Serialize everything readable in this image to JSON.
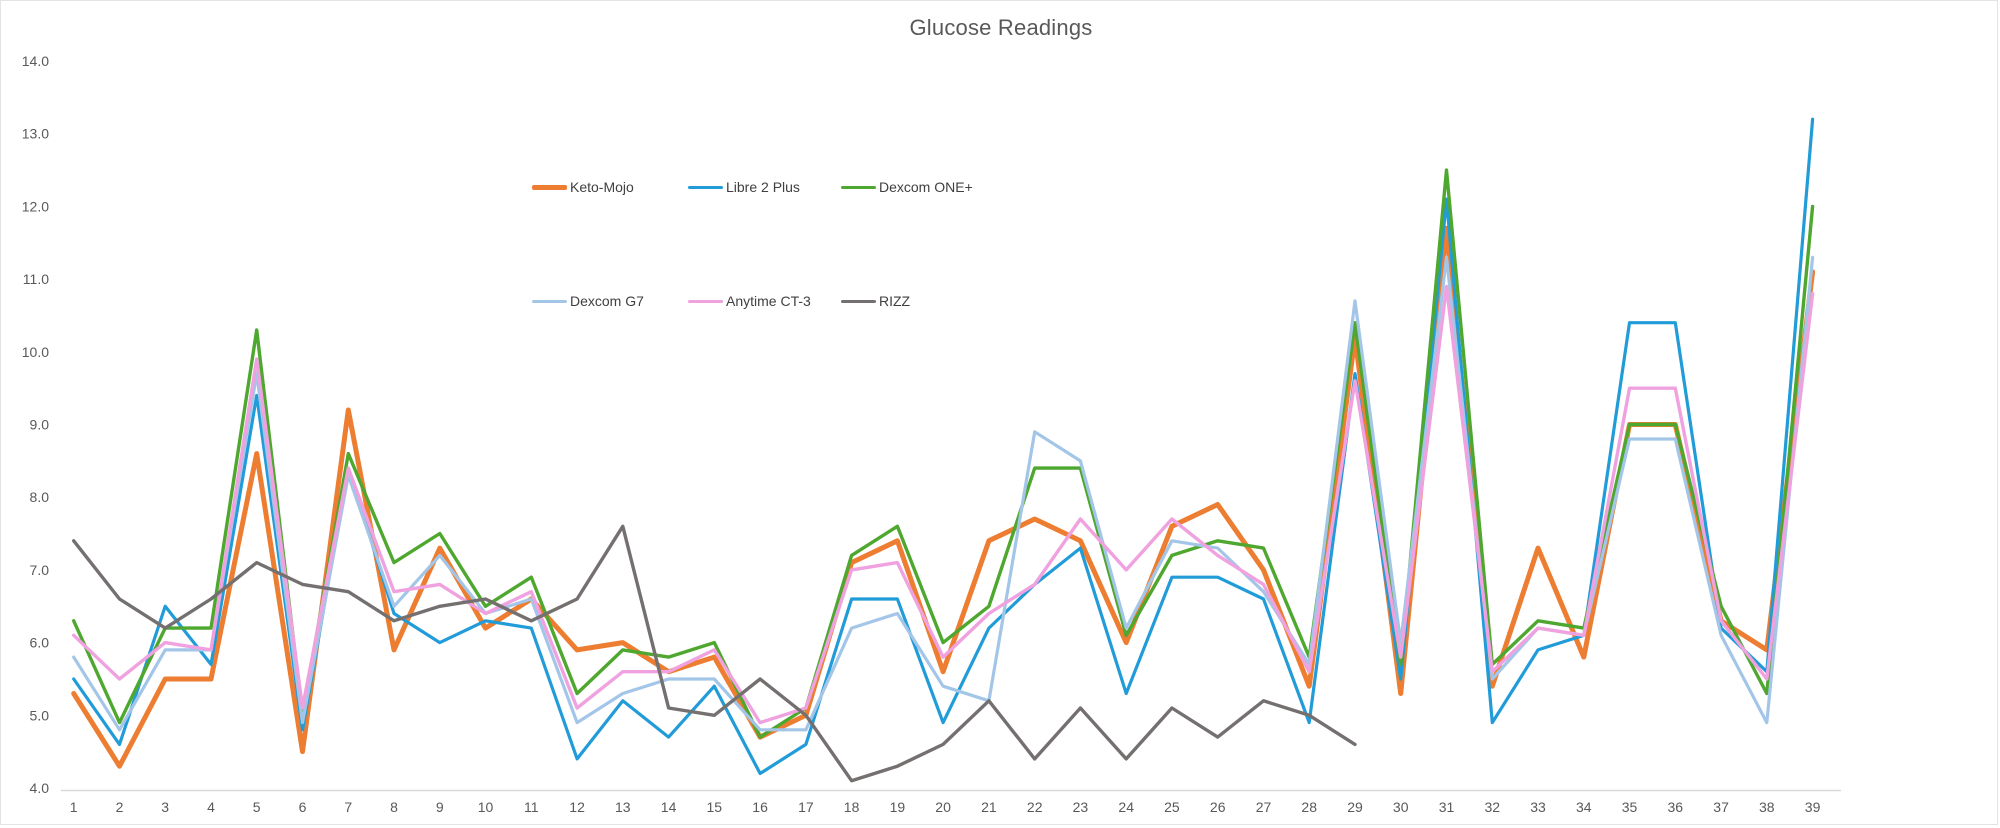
{
  "chart_data": {
    "type": "line",
    "title": "Glucose Readings",
    "xlabel": "",
    "ylabel": "",
    "ylim": [
      4.0,
      14.0
    ],
    "y_tick_step": 1.0,
    "y_ticks": [
      "14.0",
      "13.0",
      "12.0",
      "11.0",
      "10.0",
      "9.0",
      "8.0",
      "7.0",
      "6.0",
      "5.0",
      "4.0"
    ],
    "x": [
      1,
      2,
      3,
      4,
      5,
      6,
      7,
      8,
      9,
      10,
      11,
      12,
      13,
      14,
      15,
      16,
      17,
      18,
      19,
      20,
      21,
      22,
      23,
      24,
      25,
      26,
      27,
      28,
      29,
      30,
      31,
      32,
      33,
      34,
      35,
      36,
      37,
      38,
      39
    ],
    "grid": false,
    "legend_position": "top-center-two-rows",
    "axis_line_color": "#d9d9d9",
    "text_color": "#595959",
    "legend_text_color": "#404040",
    "series": [
      {
        "name": "Keto-Mojo",
        "color": "#ED7D31",
        "width": 5,
        "values": [
          5.3,
          4.3,
          5.5,
          5.5,
          8.6,
          4.5,
          9.2,
          5.9,
          7.3,
          6.2,
          6.6,
          5.9,
          6.0,
          5.6,
          5.8,
          4.7,
          5.0,
          7.1,
          7.4,
          5.6,
          7.4,
          7.7,
          7.4,
          6.0,
          7.6,
          7.9,
          7.0,
          5.4,
          10.2,
          5.3,
          11.7,
          5.4,
          7.3,
          5.8,
          9.0,
          9.0,
          6.3,
          5.9,
          11.1
        ]
      },
      {
        "name": "Libre 2 Plus",
        "color": "#219CD8",
        "width": 3.2,
        "values": [
          5.5,
          4.6,
          6.5,
          5.7,
          9.4,
          4.8,
          8.4,
          6.4,
          6.0,
          6.3,
          6.2,
          4.4,
          5.2,
          4.7,
          5.4,
          4.2,
          4.6,
          6.6,
          6.6,
          4.9,
          6.2,
          6.8,
          7.3,
          5.3,
          6.9,
          6.9,
          6.6,
          4.9,
          9.7,
          5.5,
          12.1,
          4.9,
          5.9,
          6.1,
          10.4,
          10.4,
          6.2,
          5.6,
          13.2
        ]
      },
      {
        "name": "Dexcom ONE+",
        "color": "#4EA72E",
        "width": 3.4,
        "values": [
          6.3,
          4.9,
          6.2,
          6.2,
          10.3,
          5.0,
          8.6,
          7.1,
          7.5,
          6.5,
          6.9,
          5.3,
          5.9,
          5.8,
          6.0,
          4.7,
          5.1,
          7.2,
          7.6,
          6.0,
          6.5,
          8.4,
          8.4,
          6.1,
          7.2,
          7.4,
          7.3,
          5.8,
          10.4,
          5.7,
          12.5,
          5.7,
          6.3,
          6.2,
          9.0,
          9.0,
          6.5,
          5.3,
          12.0
        ]
      },
      {
        "name": "Dexcom G7",
        "color": "#A3C6E8",
        "width": 3.2,
        "values": [
          5.8,
          4.8,
          5.9,
          5.9,
          9.7,
          4.9,
          8.3,
          6.5,
          7.2,
          6.4,
          6.6,
          4.9,
          5.3,
          5.5,
          5.5,
          4.8,
          4.8,
          6.2,
          6.4,
          5.4,
          5.2,
          8.9,
          8.5,
          6.2,
          7.4,
          7.3,
          6.7,
          5.7,
          10.7,
          6.0,
          11.3,
          5.5,
          6.2,
          6.1,
          8.8,
          8.8,
          6.1,
          4.9,
          11.3
        ]
      },
      {
        "name": "Anytime CT-3",
        "color": "#EFA2DF",
        "width": 3.4,
        "values": [
          6.1,
          5.5,
          6.0,
          5.9,
          9.9,
          5.1,
          8.4,
          6.7,
          6.8,
          6.4,
          6.7,
          5.1,
          5.6,
          5.6,
          5.9,
          4.9,
          5.1,
          7.0,
          7.1,
          5.8,
          6.4,
          6.8,
          7.7,
          7.0,
          7.7,
          7.2,
          6.8,
          5.6,
          9.6,
          5.8,
          10.9,
          5.6,
          6.2,
          6.1,
          9.5,
          9.5,
          6.3,
          5.5,
          10.8
        ]
      },
      {
        "name": "RIZZ",
        "color": "#757070",
        "width": 3.4,
        "values": [
          7.4,
          6.6,
          6.2,
          6.6,
          7.1,
          6.8,
          6.7,
          6.3,
          6.5,
          6.6,
          6.3,
          6.6,
          7.6,
          5.1,
          5.0,
          5.5,
          5.0,
          4.1,
          4.3,
          4.6,
          5.2,
          4.4,
          5.1,
          4.4,
          5.1,
          4.7,
          5.2,
          5.0,
          4.6
        ]
      }
    ]
  }
}
